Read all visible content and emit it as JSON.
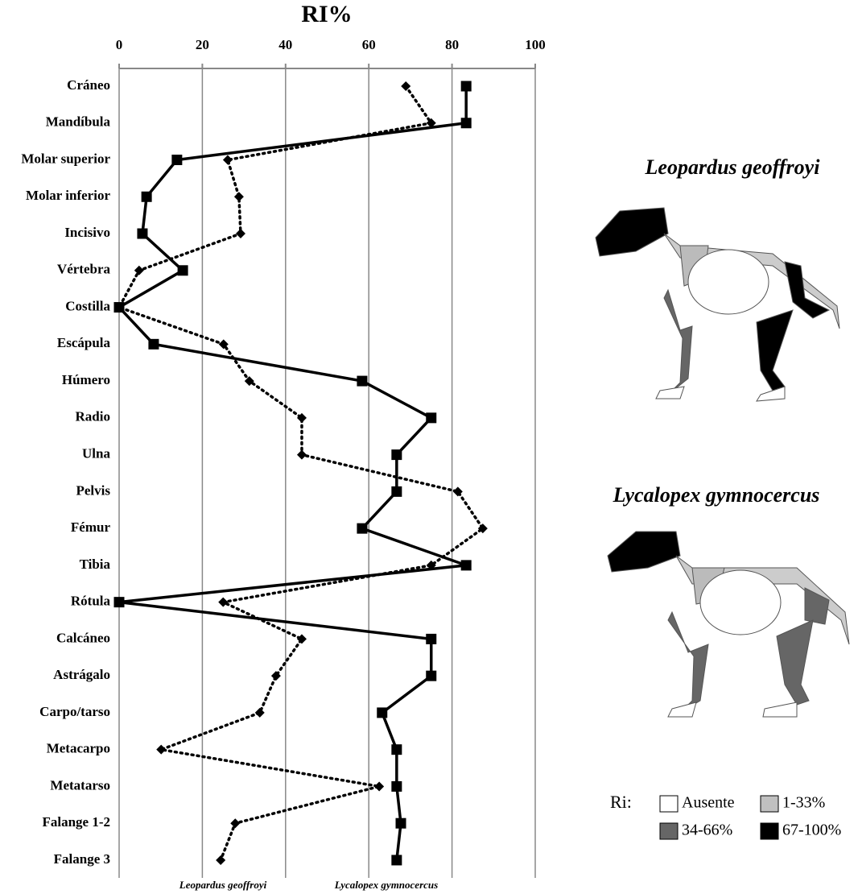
{
  "chart_data": {
    "type": "line",
    "title": "RI%",
    "orientation": "horizontal",
    "categories": [
      "Cráneo",
      "Mandíbula",
      "Molar superior",
      "Molar inferior",
      "Incisivo",
      "Vértebra",
      "Costilla",
      "Escápula",
      "Húmero",
      "Radio",
      "Ulna",
      "Pelvis",
      "Fémur",
      "Tibia",
      "Rótula",
      "Calcáneo",
      "Astrágalo",
      "Carpo/tarso",
      "Metacarpo",
      "Metatarso",
      "Falange 1-2",
      "Falange 3"
    ],
    "series": [
      {
        "name": "Leopardus geoffroyi",
        "color": "#000000",
        "line_style": "dotted",
        "marker": "diamond",
        "values": [
          68.9,
          75,
          26.1,
          28.8,
          29.2,
          4.8,
          0,
          25.1,
          31.3,
          43.9,
          43.9,
          81.4,
          87.4,
          75,
          25,
          43.9,
          37.7,
          33.8,
          10.1,
          62.5,
          27.9,
          24.4
        ]
      },
      {
        "name": "Lycalopex gymnocercus",
        "color": "#000000",
        "line_style": "solid",
        "marker": "square",
        "values": [
          83.4,
          83.4,
          13.9,
          6.6,
          5.6,
          15.3,
          0,
          8.3,
          58.4,
          75,
          66.7,
          66.7,
          58.4,
          83.4,
          0,
          75,
          75,
          63.2,
          66.7,
          66.7,
          67.7,
          66.7
        ]
      }
    ],
    "xlim": [
      0,
      100
    ],
    "xticks": [
      0,
      20,
      40,
      60,
      80,
      100
    ],
    "grid": true
  },
  "side_panel": {
    "species": [
      "Leopardus geoffroyi",
      "Lycalopex gymnocercus"
    ],
    "legend_title": "Ri:",
    "legend": [
      {
        "label": "Ausente",
        "color": "#ffffff"
      },
      {
        "label": "1-33%",
        "color": "#c0c0c0"
      },
      {
        "label": "34-66%",
        "color": "#666666"
      },
      {
        "label": "67-100%",
        "color": "#000000"
      }
    ]
  }
}
